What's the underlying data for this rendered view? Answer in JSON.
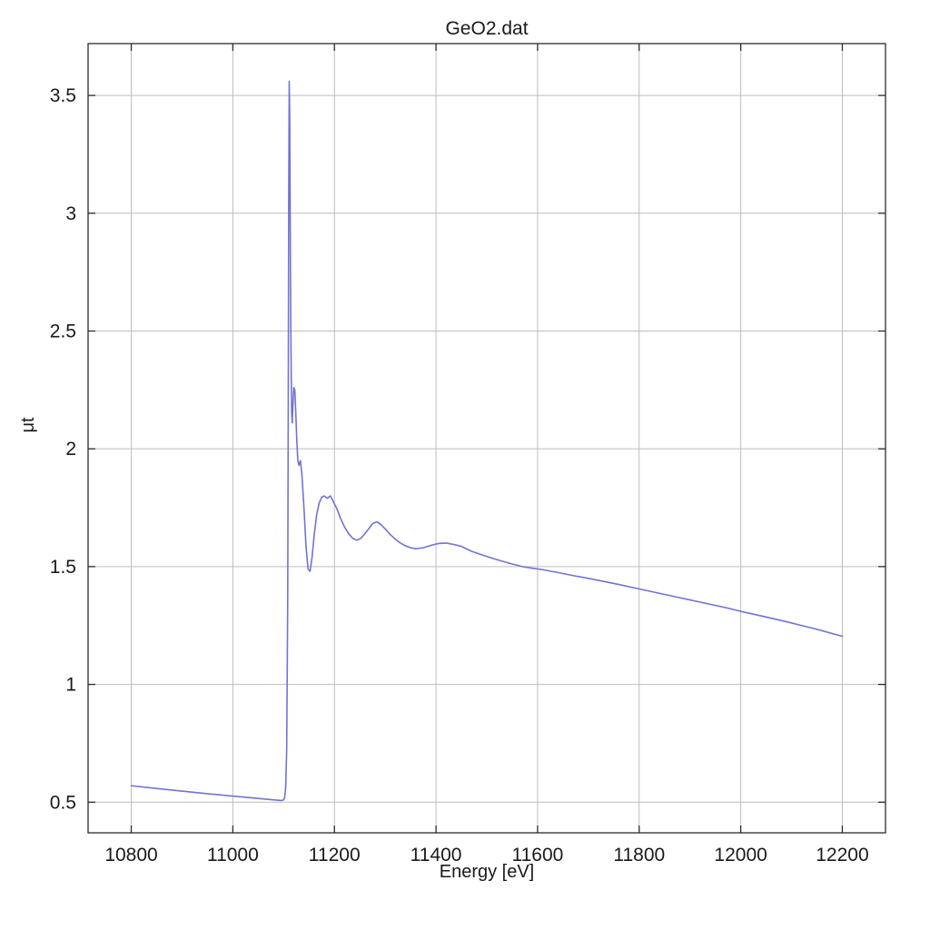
{
  "chart_data": {
    "type": "line",
    "title": "GeO2.dat",
    "xlabel": "Energy [eV]",
    "ylabel": "μt",
    "xlim": [
      10715,
      12285
    ],
    "ylim": [
      0.37,
      3.72
    ],
    "xticks": [
      10800,
      11000,
      11200,
      11400,
      11600,
      11800,
      12000,
      12200
    ],
    "yticks": [
      0.5,
      1,
      1.5,
      2,
      2.5,
      3,
      3.5
    ],
    "grid": true,
    "legend": "none",
    "colors": {
      "line": "#7173d4",
      "grid": "#bdbdbd",
      "frame": "#2b2b2b",
      "text": "#1a1a1a",
      "background": "#ffffff"
    },
    "series": [
      {
        "name": "GeO2.dat",
        "x": [
          10800,
          10850,
          10900,
          10950,
          11000,
          11030,
          11060,
          11080,
          11090,
          11096,
          11100,
          11102,
          11104,
          11106,
          11108,
          11109,
          11110,
          11111,
          11112,
          11113,
          11114,
          11115,
          11116,
          11117,
          11118,
          11120,
          11122,
          11124,
          11126,
          11128,
          11130,
          11133,
          11136,
          11140,
          11144,
          11148,
          11152,
          11156,
          11160,
          11165,
          11170,
          11175,
          11180,
          11186,
          11192,
          11198,
          11205,
          11212,
          11220,
          11228,
          11236,
          11244,
          11252,
          11260,
          11268,
          11276,
          11284,
          11292,
          11300,
          11310,
          11320,
          11330,
          11340,
          11350,
          11360,
          11375,
          11390,
          11405,
          11420,
          11435,
          11450,
          11470,
          11490,
          11510,
          11530,
          11550,
          11570,
          11590,
          11610,
          11640,
          11670,
          11700,
          11730,
          11760,
          11790,
          11820,
          11850,
          11880,
          11910,
          11940,
          11970,
          12000,
          12030,
          12060,
          12090,
          12120,
          12150,
          12180,
          12200
        ],
        "y": [
          0.57,
          0.558,
          0.547,
          0.536,
          0.526,
          0.52,
          0.514,
          0.51,
          0.508,
          0.507,
          0.51,
          0.52,
          0.56,
          0.72,
          1.35,
          2.1,
          3.05,
          3.56,
          3.4,
          2.95,
          2.55,
          2.3,
          2.15,
          2.11,
          2.17,
          2.26,
          2.25,
          2.15,
          2.03,
          1.95,
          1.93,
          1.95,
          1.89,
          1.75,
          1.59,
          1.49,
          1.48,
          1.54,
          1.63,
          1.72,
          1.77,
          1.795,
          1.8,
          1.79,
          1.8,
          1.775,
          1.745,
          1.705,
          1.668,
          1.64,
          1.62,
          1.612,
          1.62,
          1.64,
          1.662,
          1.684,
          1.69,
          1.678,
          1.66,
          1.636,
          1.616,
          1.6,
          1.588,
          1.58,
          1.576,
          1.58,
          1.59,
          1.598,
          1.6,
          1.594,
          1.586,
          1.565,
          1.55,
          1.536,
          1.523,
          1.511,
          1.5,
          1.493,
          1.487,
          1.475,
          1.462,
          1.45,
          1.437,
          1.424,
          1.41,
          1.396,
          1.382,
          1.368,
          1.354,
          1.34,
          1.326,
          1.31,
          1.296,
          1.281,
          1.266,
          1.25,
          1.234,
          1.216,
          1.204
        ]
      }
    ]
  }
}
